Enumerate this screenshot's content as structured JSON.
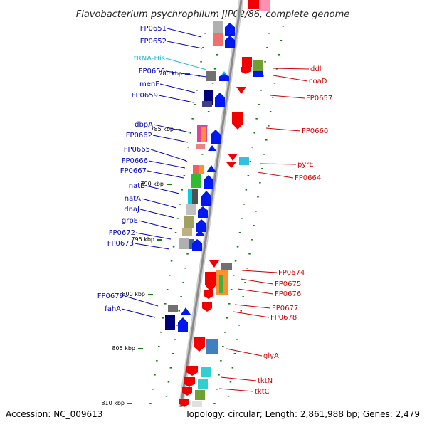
{
  "title": "Flavobacterium psychrophilum JIP02/86, complete genome",
  "footer": {
    "accession": "Accession: NC_009613",
    "topology": "Topology: circular; Length: 2,861,988 bp; Genes: 2,479"
  },
  "colors": {
    "left_strand_label": "#0000bb",
    "right_strand_label": "#cc0000",
    "trna_label": "#22bbdd",
    "tick": "#1a7a1a"
  },
  "kbp_ticks": [
    "780 kbp",
    "785 kbp",
    "790 kbp",
    "795 kbp",
    "800 kbp",
    "805 kbp",
    "810 kbp"
  ],
  "left_genes": [
    "FP0651",
    "FP0652",
    "tRNA-His",
    "FP0656",
    "menF",
    "FP0659",
    "dbpA",
    "FP0662",
    "FP0665",
    "FP0666",
    "FP0667",
    "natB",
    "natA",
    "dnaJ",
    "grpE",
    "FP0672",
    "FP0673",
    "FP0679",
    "fahA"
  ],
  "right_genes": [
    "ddl",
    "coaD",
    "FP0657",
    "FP0660",
    "pyrE",
    "FP0664",
    "FP0674",
    "FP0675",
    "FP0676",
    "FP0677",
    "FP0678",
    "glyA",
    "tktN",
    "tktC"
  ]
}
